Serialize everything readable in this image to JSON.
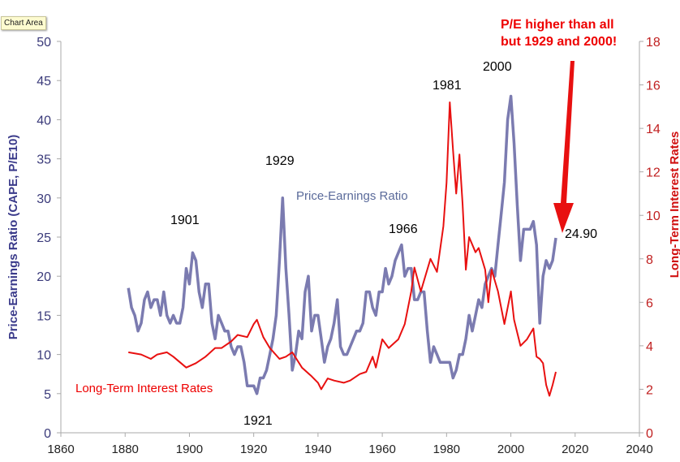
{
  "tooltip": "Chart Area",
  "chart_data": {
    "type": "line",
    "xlim": [
      1860,
      2040
    ],
    "xticks": [
      1860,
      1880,
      1900,
      1920,
      1940,
      1960,
      1980,
      2000,
      2020,
      2040
    ],
    "ylabel_left": "Price-Earnings Ratio (CAPE, P/E10)",
    "ylim_left": [
      0,
      50
    ],
    "yticks_left": [
      0,
      5,
      10,
      15,
      20,
      25,
      30,
      35,
      40,
      45,
      50
    ],
    "ylabel_right": "Long-Term Interest Rates",
    "ylim_right": [
      0,
      18
    ],
    "yticks_right": [
      0,
      2,
      4,
      6,
      8,
      10,
      12,
      14,
      16,
      18
    ],
    "grid": false,
    "series": [
      {
        "name": "Price-Earnings Ratio",
        "axis": "left",
        "color": "#7b7bb0",
        "x": [
          1881,
          1882,
          1883,
          1884,
          1885,
          1886,
          1887,
          1888,
          1889,
          1890,
          1891,
          1892,
          1893,
          1894,
          1895,
          1896,
          1897,
          1898,
          1899,
          1900,
          1901,
          1902,
          1903,
          1904,
          1905,
          1906,
          1907,
          1908,
          1909,
          1910,
          1911,
          1912,
          1913,
          1914,
          1915,
          1916,
          1917,
          1918,
          1919,
          1920,
          1921,
          1922,
          1923,
          1924,
          1925,
          1926,
          1927,
          1928,
          1929,
          1930,
          1931,
          1932,
          1933,
          1934,
          1935,
          1936,
          1937,
          1938,
          1939,
          1940,
          1941,
          1942,
          1943,
          1944,
          1945,
          1946,
          1947,
          1948,
          1949,
          1950,
          1951,
          1952,
          1953,
          1954,
          1955,
          1956,
          1957,
          1958,
          1959,
          1960,
          1961,
          1962,
          1963,
          1964,
          1965,
          1966,
          1967,
          1968,
          1969,
          1970,
          1971,
          1972,
          1973,
          1974,
          1975,
          1976,
          1977,
          1978,
          1979,
          1980,
          1981,
          1982,
          1983,
          1984,
          1985,
          1986,
          1987,
          1988,
          1989,
          1990,
          1991,
          1992,
          1993,
          1994,
          1995,
          1996,
          1997,
          1998,
          1999,
          2000,
          2001,
          2002,
          2003,
          2004,
          2005,
          2006,
          2007,
          2008,
          2009,
          2010,
          2011,
          2012,
          2013,
          2014
        ],
        "y": [
          18.5,
          16,
          15,
          13,
          14,
          17,
          18,
          16,
          17,
          17,
          15,
          18,
          15,
          14,
          15,
          14,
          14,
          16,
          21,
          19,
          23,
          22,
          18,
          16,
          19,
          19,
          14,
          12,
          15,
          14,
          13,
          13,
          11,
          10,
          11,
          11,
          9,
          6,
          6,
          6,
          5,
          7,
          7,
          8,
          10,
          12,
          15,
          22,
          30,
          21,
          15,
          8,
          10,
          13,
          12,
          18,
          20,
          13,
          15,
          15,
          12,
          9,
          11,
          12,
          14,
          17,
          11,
          10,
          10,
          11,
          12,
          13,
          13,
          14,
          18,
          18,
          16,
          15,
          18,
          18,
          21,
          19,
          20,
          22,
          23,
          24,
          20,
          21,
          21,
          17,
          17,
          18,
          18,
          13,
          9,
          11,
          10,
          9,
          9,
          9,
          9,
          7,
          8,
          10,
          10,
          12,
          15,
          13,
          15,
          17,
          16,
          19,
          20,
          21,
          20,
          24,
          28,
          32,
          40,
          43,
          37,
          29,
          22,
          26,
          26,
          26,
          27,
          24,
          14,
          20,
          22,
          21,
          22,
          24.9
        ]
      },
      {
        "name": "Long-Term Interest Rates",
        "axis": "right",
        "color": "#e81010",
        "x": [
          1881,
          1885,
          1888,
          1890,
          1893,
          1895,
          1899,
          1902,
          1905,
          1908,
          1910,
          1913,
          1915,
          1918,
          1920,
          1921,
          1923,
          1925,
          1928,
          1930,
          1932,
          1935,
          1938,
          1940,
          1941,
          1943,
          1945,
          1948,
          1950,
          1953,
          1955,
          1957,
          1958,
          1960,
          1962,
          1965,
          1967,
          1969,
          1970,
          1972,
          1975,
          1977,
          1979,
          1980,
          1981,
          1982,
          1983,
          1984,
          1985,
          1986,
          1987,
          1989,
          1990,
          1992,
          1993,
          1994,
          1996,
          1998,
          2000,
          2001,
          2003,
          2005,
          2007,
          2008,
          2009,
          2010,
          2011,
          2012,
          2013,
          2014
        ],
        "y": [
          3.7,
          3.6,
          3.4,
          3.6,
          3.7,
          3.5,
          3.0,
          3.2,
          3.5,
          3.9,
          3.9,
          4.2,
          4.5,
          4.4,
          5.0,
          5.2,
          4.4,
          3.9,
          3.4,
          3.5,
          3.7,
          3.0,
          2.6,
          2.3,
          2.0,
          2.5,
          2.4,
          2.3,
          2.4,
          2.7,
          2.8,
          3.5,
          3.0,
          4.3,
          3.9,
          4.3,
          5.0,
          6.5,
          7.6,
          6.5,
          8.0,
          7.4,
          9.5,
          11.5,
          15.2,
          13.0,
          11.0,
          12.8,
          10.5,
          7.5,
          9.0,
          8.3,
          8.5,
          7.5,
          6.0,
          7.5,
          6.5,
          5.0,
          6.5,
          5.2,
          4.0,
          4.3,
          4.8,
          3.5,
          3.4,
          3.2,
          2.2,
          1.7,
          2.2,
          2.8
        ]
      }
    ],
    "annotations": {
      "a1901": "1901",
      "a1921": "1921",
      "a1929": "1929",
      "a1966": "1966",
      "a1981": "1981",
      "a2000": "2000",
      "last": "24.90",
      "callout": "P/E higher than all\nbut 1929 and 2000!"
    }
  }
}
